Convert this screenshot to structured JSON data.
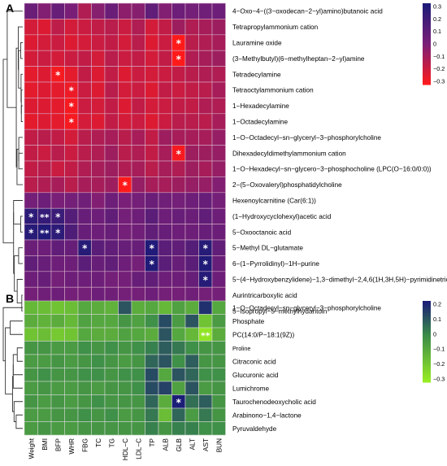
{
  "chart_data": [
    {
      "panel": "A",
      "type": "heatmap",
      "columns": [
        "Weight",
        "BMI",
        "BFP",
        "WHR",
        "FBG",
        "TC",
        "TG",
        "HDL−C",
        "LDL−C",
        "TP",
        "ALB",
        "GLB",
        "ALT",
        "AST",
        "BUN"
      ],
      "rows": [
        "4−Oxo−4−((3−oxodecan−2−yl)amino)butanoic acid",
        "Tetrapropylammonium cation",
        "Lauramine oxide",
        "(3−Methylbutyl)(6−methylheptan−2−yl)amine",
        "Tetradecylamine",
        "Tetraoctylammonium cation",
        "1−Hexadecylamine",
        "1−Octadecylamine",
        "1−O−Octadecyl−sn−glyceryl−3−phosphorylcholine",
        "Dihexadecyldimethylammonium cation",
        "1−O−Hexadecyl−sn−glycero−3−phosphocholine (LPC(O−16:0/0:0))",
        "2−(5−Oxovaleryl)phosphatidylcholine",
        "Hexenoylcarnitine (Car(6:1))",
        "(1−Hydroxycyclohexyl)acetic acid",
        "5−Oxooctanoic acid",
        "5−Methyl DL−glutamate",
        "6−(1−Pyrrolidinyl)−1H−purine",
        "5−(4−Hydroxybenzylidene)−1,3−dimethyl−2,4,6(1H,3H,5H)−pyrimidinetrione",
        "Aurintricarboxylic acid",
        "5−Isopropyl−5−methylhydantoin"
      ],
      "values": [
        [
          0.05,
          -0.02,
          0.06,
          0.0,
          -0.12,
          -0.03,
          0.05,
          -0.04,
          -0.03,
          0.08,
          -0.02,
          0.04,
          0.02,
          0.03,
          0.04
        ],
        [
          -0.2,
          -0.22,
          -0.15,
          -0.2,
          -0.18,
          -0.16,
          -0.14,
          -0.18,
          -0.12,
          -0.2,
          -0.16,
          -0.08,
          -0.12,
          -0.1,
          -0.08
        ],
        [
          -0.22,
          -0.2,
          -0.18,
          -0.22,
          -0.2,
          -0.18,
          -0.16,
          -0.2,
          -0.14,
          -0.22,
          -0.18,
          -0.3,
          -0.14,
          -0.12,
          -0.1
        ],
        [
          -0.2,
          -0.18,
          -0.2,
          -0.18,
          -0.16,
          -0.2,
          -0.14,
          -0.18,
          -0.16,
          -0.2,
          -0.16,
          -0.3,
          -0.12,
          -0.1,
          -0.08
        ],
        [
          -0.24,
          -0.22,
          -0.28,
          -0.24,
          -0.16,
          -0.22,
          -0.16,
          -0.22,
          -0.18,
          -0.2,
          -0.18,
          -0.16,
          -0.14,
          -0.12,
          -0.12
        ],
        [
          -0.24,
          -0.22,
          -0.24,
          -0.26,
          -0.18,
          -0.22,
          -0.14,
          -0.2,
          -0.18,
          -0.22,
          -0.16,
          -0.18,
          -0.16,
          -0.14,
          -0.1
        ],
        [
          -0.22,
          -0.22,
          -0.24,
          -0.28,
          -0.18,
          -0.2,
          -0.16,
          -0.22,
          -0.16,
          -0.2,
          -0.18,
          -0.16,
          -0.16,
          -0.12,
          -0.12
        ],
        [
          -0.24,
          -0.22,
          -0.24,
          -0.28,
          -0.2,
          -0.22,
          -0.16,
          -0.2,
          -0.18,
          -0.22,
          -0.18,
          -0.14,
          -0.14,
          -0.14,
          -0.1
        ],
        [
          -0.16,
          -0.14,
          -0.16,
          -0.2,
          -0.14,
          -0.12,
          -0.1,
          -0.14,
          -0.1,
          -0.16,
          -0.08,
          -0.1,
          -0.1,
          -0.1,
          -0.06
        ],
        [
          -0.16,
          -0.18,
          -0.14,
          -0.18,
          -0.14,
          -0.12,
          -0.08,
          -0.14,
          -0.12,
          -0.16,
          -0.1,
          -0.28,
          -0.08,
          -0.08,
          -0.06
        ],
        [
          -0.16,
          -0.14,
          -0.18,
          -0.16,
          -0.12,
          -0.1,
          -0.08,
          -0.12,
          -0.1,
          -0.14,
          -0.1,
          -0.12,
          -0.08,
          -0.1,
          -0.06
        ],
        [
          -0.14,
          -0.12,
          -0.1,
          -0.14,
          -0.1,
          -0.1,
          -0.08,
          -0.32,
          -0.06,
          -0.1,
          -0.1,
          -0.08,
          -0.06,
          -0.06,
          -0.02
        ],
        [
          0.02,
          0.04,
          0.0,
          0.02,
          0.03,
          -0.02,
          0.04,
          0.0,
          0.02,
          0.05,
          0.03,
          0.02,
          0.04,
          0.06,
          0.02
        ],
        [
          0.24,
          0.22,
          0.2,
          0.12,
          0.06,
          0.04,
          0.08,
          0.02,
          0.04,
          0.1,
          0.04,
          0.06,
          0.05,
          0.08,
          0.04
        ],
        [
          0.26,
          0.28,
          0.24,
          0.14,
          0.06,
          0.04,
          0.06,
          0.02,
          0.03,
          0.08,
          0.06,
          0.04,
          0.04,
          0.06,
          0.05
        ],
        [
          0.05,
          0.04,
          0.08,
          0.06,
          0.26,
          0.1,
          0.08,
          0.06,
          0.06,
          0.28,
          0.1,
          0.08,
          0.12,
          0.26,
          0.08
        ],
        [
          0.08,
          0.06,
          0.04,
          0.04,
          0.1,
          0.06,
          0.08,
          0.04,
          0.02,
          0.28,
          0.1,
          0.06,
          0.1,
          0.28,
          0.06
        ],
        [
          0.04,
          0.06,
          0.02,
          0.04,
          0.04,
          0.04,
          0.02,
          0.02,
          0.06,
          0.08,
          0.04,
          0.04,
          0.06,
          0.26,
          0.04
        ],
        [
          0.02,
          0.03,
          0.04,
          0.02,
          0.02,
          0.04,
          0.03,
          0.02,
          0.02,
          0.04,
          0.02,
          0.02,
          0.03,
          0.02,
          0.02
        ],
        [
          0.0,
          0.02,
          0.04,
          0.02,
          0.02,
          0.03,
          0.04,
          0.02,
          0.03,
          0.04,
          0.03,
          0.02,
          0.02,
          0.04,
          0.04
        ]
      ],
      "significance": [
        [
          "",
          "",
          "",
          "",
          "",
          "",
          "",
          "",
          "",
          "",
          "",
          "",
          "",
          "",
          ""
        ],
        [
          "",
          "",
          "",
          "",
          "",
          "",
          "",
          "",
          "",
          "",
          "",
          "",
          "",
          "",
          ""
        ],
        [
          "",
          "",
          "",
          "",
          "",
          "",
          "",
          "",
          "",
          "",
          "",
          "*",
          "",
          "",
          ""
        ],
        [
          "",
          "",
          "",
          "",
          "",
          "",
          "",
          "",
          "",
          "",
          "",
          "*",
          "",
          "",
          ""
        ],
        [
          "",
          "",
          "*",
          "",
          "",
          "",
          "",
          "",
          "",
          "",
          "",
          "",
          "",
          "",
          ""
        ],
        [
          "",
          "",
          "",
          "*",
          "",
          "",
          "",
          "",
          "",
          "",
          "",
          "",
          "",
          "",
          ""
        ],
        [
          "",
          "",
          "",
          "*",
          "",
          "",
          "",
          "",
          "",
          "",
          "",
          "",
          "",
          "",
          ""
        ],
        [
          "",
          "",
          "",
          "*",
          "",
          "",
          "",
          "",
          "",
          "",
          "",
          "",
          "",
          "",
          ""
        ],
        [
          "",
          "",
          "",
          "",
          "",
          "",
          "",
          "",
          "",
          "",
          "",
          "",
          "",
          "",
          ""
        ],
        [
          "",
          "",
          "",
          "",
          "",
          "",
          "",
          "",
          "",
          "",
          "",
          "*",
          "",
          "",
          ""
        ],
        [
          "",
          "",
          "",
          "",
          "",
          "",
          "",
          "",
          "",
          "",
          "",
          "",
          "",
          "",
          ""
        ],
        [
          "",
          "",
          "",
          "",
          "",
          "",
          "",
          "*",
          "",
          "",
          "",
          "",
          "",
          "",
          ""
        ],
        [
          "",
          "",
          "",
          "",
          "",
          "",
          "",
          "",
          "",
          "",
          "",
          "",
          "",
          "",
          ""
        ],
        [
          "*",
          "**",
          "*",
          "",
          "",
          "",
          "",
          "",
          "",
          "",
          "",
          "",
          "",
          "",
          ""
        ],
        [
          "*",
          "**",
          "*",
          "",
          "",
          "",
          "",
          "",
          "",
          "",
          "",
          "",
          "",
          "",
          ""
        ],
        [
          "",
          "",
          "",
          "",
          "*",
          "",
          "",
          "",
          "",
          "*",
          "",
          "",
          "",
          "*",
          ""
        ],
        [
          "",
          "",
          "",
          "",
          "",
          "",
          "",
          "",
          "",
          "*",
          "",
          "",
          "",
          "*",
          ""
        ],
        [
          "",
          "",
          "",
          "",
          "",
          "",
          "",
          "",
          "",
          "",
          "",
          "",
          "",
          "*",
          ""
        ],
        [
          "",
          "",
          "",
          "",
          "",
          "",
          "",
          "",
          "",
          "",
          "",
          "",
          "",
          "",
          ""
        ],
        [
          "",
          "",
          "",
          "",
          "",
          "",
          "",
          "",
          "",
          "",
          "",
          "",
          "",
          "",
          ""
        ]
      ],
      "color_scale": {
        "low": "#ff1a1a",
        "mid": "#7a1f78",
        "high": "#1a1a78",
        "range": [
          -0.3,
          0.3
        ]
      },
      "legend_ticks": [
        "0.3",
        "0.2",
        "0.1",
        "0",
        "−0.1",
        "−0.2",
        "−0.3"
      ]
    },
    {
      "panel": "B",
      "type": "heatmap",
      "columns": [
        "Weight",
        "BMI",
        "BFP",
        "WHR",
        "FBG",
        "TC",
        "TG",
        "HDL−C",
        "LDL−C",
        "TP",
        "ALB",
        "GLB",
        "ALT",
        "AST",
        "BUN"
      ],
      "rows": [
        "1−O−Octadecyl−sn−glyceryl−3−phosphorylcholine",
        "Phosphate",
        "PC(14:0/P−18:1(9Z))",
        "Proline",
        "Citraconic acid",
        "Glucuronic acid",
        "Lumichrome",
        "Taurochenodeoxycholic acid",
        "Arabinono−1,4−lactone",
        "Pyruvaldehyde"
      ],
      "values": [
        [
          -0.16,
          -0.18,
          -0.2,
          -0.18,
          -0.1,
          -0.12,
          -0.14,
          0.12,
          -0.12,
          -0.1,
          -0.16,
          -0.08,
          -0.12,
          0.2,
          -0.1
        ],
        [
          -0.12,
          -0.14,
          -0.12,
          -0.16,
          -0.08,
          -0.1,
          -0.1,
          -0.04,
          -0.08,
          -0.02,
          0.14,
          -0.06,
          0.12,
          -0.2,
          -0.06
        ],
        [
          -0.2,
          -0.18,
          -0.22,
          -0.2,
          -0.1,
          -0.12,
          -0.12,
          -0.08,
          -0.1,
          -0.12,
          0.12,
          -0.1,
          -0.16,
          -0.32,
          -0.12
        ],
        [
          -0.04,
          -0.04,
          -0.06,
          -0.06,
          -0.02,
          -0.04,
          -0.02,
          -0.04,
          -0.02,
          0.02,
          0.1,
          0.04,
          -0.02,
          -0.04,
          -0.04
        ],
        [
          -0.06,
          -0.06,
          -0.04,
          -0.06,
          -0.04,
          -0.02,
          -0.04,
          -0.06,
          -0.04,
          0.08,
          0.12,
          -0.02,
          0.1,
          -0.04,
          -0.04
        ],
        [
          -0.04,
          -0.02,
          -0.04,
          -0.04,
          -0.02,
          -0.02,
          -0.04,
          -0.02,
          -0.02,
          0.14,
          -0.1,
          0.12,
          0.08,
          -0.02,
          -0.02
        ],
        [
          -0.06,
          -0.04,
          -0.06,
          -0.06,
          -0.04,
          -0.06,
          -0.04,
          -0.04,
          -0.02,
          0.14,
          0.16,
          -0.08,
          0.12,
          -0.06,
          -0.04
        ],
        [
          -0.04,
          -0.06,
          -0.04,
          -0.06,
          -0.04,
          -0.02,
          -0.04,
          -0.04,
          -0.04,
          0.08,
          -0.12,
          0.24,
          0.06,
          0.1,
          -0.04
        ],
        [
          -0.06,
          -0.06,
          -0.04,
          -0.04,
          -0.02,
          -0.04,
          -0.02,
          -0.06,
          -0.04,
          0.04,
          -0.18,
          0.08,
          -0.06,
          0.04,
          -0.04
        ],
        [
          -0.06,
          -0.04,
          -0.06,
          -0.06,
          -0.04,
          -0.04,
          -0.04,
          -0.04,
          -0.04,
          0.02,
          -0.04,
          0.02,
          0.02,
          -0.02,
          -0.02
        ]
      ],
      "significance": [
        [
          "",
          "",
          "",
          "",
          "",
          "",
          "",
          "",
          "",
          "",
          "",
          "",
          "",
          "",
          ""
        ],
        [
          "",
          "",
          "",
          "",
          "",
          "",
          "",
          "",
          "",
          "",
          "",
          "",
          "",
          "",
          ""
        ],
        [
          "",
          "",
          "",
          "",
          "",
          "",
          "",
          "",
          "",
          "",
          "",
          "",
          "",
          "**",
          ""
        ],
        [
          "",
          "",
          "",
          "",
          "",
          "",
          "",
          "",
          "",
          "",
          "",
          "",
          "",
          "",
          ""
        ],
        [
          "",
          "",
          "",
          "",
          "",
          "",
          "",
          "",
          "",
          "",
          "",
          "",
          "",
          "",
          ""
        ],
        [
          "",
          "",
          "",
          "",
          "",
          "",
          "",
          "",
          "",
          "",
          "",
          "",
          "",
          "",
          ""
        ],
        [
          "",
          "",
          "",
          "",
          "",
          "",
          "",
          "",
          "",
          "",
          "",
          "",
          "",
          "",
          ""
        ],
        [
          "",
          "",
          "",
          "",
          "",
          "",
          "",
          "",
          "",
          "",
          "",
          "*",
          "",
          "",
          ""
        ],
        [
          "",
          "",
          "",
          "",
          "",
          "",
          "",
          "",
          "",
          "",
          "",
          "",
          "",
          "",
          ""
        ],
        [
          "",
          "",
          "",
          "",
          "",
          "",
          "",
          "",
          "",
          "",
          "",
          "",
          "",
          "",
          ""
        ]
      ],
      "color_scale": {
        "low": "#99ee22",
        "mid": "#3a8a4a",
        "high": "#1a1a78",
        "range": [
          -0.35,
          0.25
        ]
      },
      "legend_ticks": [
        "0.2",
        "0.1",
        "0",
        "−0.1",
        "−0.2",
        "−0.3"
      ]
    }
  ],
  "panel_labels": {
    "a": "A",
    "b": "B"
  }
}
